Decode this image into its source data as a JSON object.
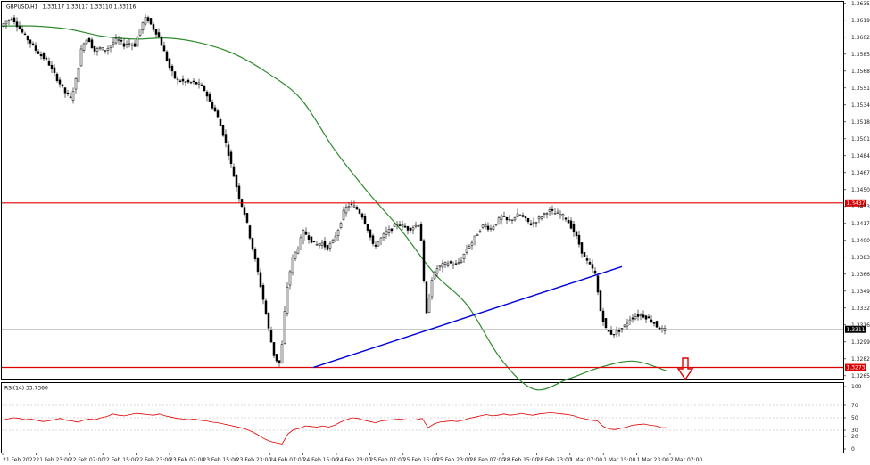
{
  "chart_data": [
    {
      "type": "candlestick",
      "title": "GBPUSD,H1",
      "ohlc_label": "1.33117 1.33117 1.33110 1.33116",
      "ylim": [
        1.32655,
        1.36355
      ],
      "y_ticks": [
        "1.36355",
        "1.36190",
        "1.36020",
        "1.35855",
        "1.35685",
        "1.35515",
        "1.35345",
        "1.35180",
        "1.35010",
        "1.34840",
        "1.34675",
        "1.34500",
        "1.34335",
        "1.34170",
        "1.34000",
        "1.33830",
        "1.33665",
        "1.33495",
        "1.33325",
        "1.33160",
        "1.32990",
        "1.32820",
        "1.32655"
      ],
      "x_ticks": [
        "21 Feb 2022",
        "21 Feb 23:00",
        "22 Feb 07:00",
        "22 Feb 15:00",
        "22 Feb 23:00",
        "23 Feb 07:00",
        "23 Feb 15:00",
        "23 Feb 23:00",
        "24 Feb 07:00",
        "24 Feb 15:00",
        "24 Feb 23:00",
        "25 Feb 07:00",
        "25 Feb 15:00",
        "25 Feb 23:00",
        "28 Feb 07:00",
        "28 Feb 15:00",
        "28 Feb 23:00",
        "1 Mar 07:00",
        "1 Mar 15:00",
        "1 Mar 23:00",
        "2 Mar 07:00"
      ],
      "price_path": [
        1.3613,
        1.3618,
        1.3621,
        1.3612,
        1.3604,
        1.3597,
        1.3589,
        1.3583,
        1.3578,
        1.3567,
        1.3557,
        1.3547,
        1.3541,
        1.3562,
        1.3596,
        1.3601,
        1.3588,
        1.3591,
        1.3589,
        1.3595,
        1.36,
        1.3594,
        1.3596,
        1.3594,
        1.3612,
        1.3622,
        1.3612,
        1.3604,
        1.3588,
        1.3571,
        1.356,
        1.3558,
        1.3557,
        1.3557,
        1.3555,
        1.3549,
        1.3536,
        1.3526,
        1.3509,
        1.3488,
        1.3464,
        1.3441,
        1.3424,
        1.3397,
        1.3372,
        1.3343,
        1.3311,
        1.3283,
        1.3277,
        1.3348,
        1.3381,
        1.3393,
        1.3409,
        1.3402,
        1.3395,
        1.3398,
        1.3392,
        1.3399,
        1.3412,
        1.3431,
        1.3436,
        1.3432,
        1.3425,
        1.3411,
        1.3393,
        1.34,
        1.3407,
        1.3411,
        1.3417,
        1.3414,
        1.3411,
        1.3414,
        1.3417,
        1.3323,
        1.3362,
        1.3373,
        1.3376,
        1.3378,
        1.3375,
        1.338,
        1.3392,
        1.3399,
        1.3409,
        1.3416,
        1.3411,
        1.3417,
        1.3424,
        1.3419,
        1.3422,
        1.3426,
        1.3421,
        1.3416,
        1.342,
        1.3425,
        1.343,
        1.3427,
        1.3426,
        1.3422,
        1.3413,
        1.3401,
        1.3385,
        1.3376,
        1.3368,
        1.3329,
        1.331,
        1.3307,
        1.331,
        1.3314,
        1.3322,
        1.3325,
        1.3326,
        1.3323,
        1.3319,
        1.3312,
        1.3311
      ],
      "moving_average": {
        "color": "#2e8b2e",
        "x": [
          0,
          0.04,
          0.08,
          0.12,
          0.16,
          0.2,
          0.24,
          0.28,
          0.32,
          0.36,
          0.4,
          0.44,
          0.48,
          0.52,
          0.56,
          0.6,
          0.64,
          0.68,
          0.72,
          0.76,
          0.8
        ],
        "y": [
          1.3613,
          1.3613,
          1.361,
          1.3603,
          1.36,
          1.3601,
          1.3596,
          1.3585,
          1.3566,
          1.354,
          1.349,
          1.3448,
          1.341,
          1.3367,
          1.3335,
          1.3282,
          1.3252,
          1.3262,
          1.3274,
          1.328,
          1.327
        ]
      },
      "hlines": [
        {
          "value": 1.34372,
          "label": "1.34372",
          "color": "#e00000"
        },
        {
          "value": 1.32737,
          "label": "1.32737",
          "color": "#e00000"
        },
        {
          "value": 1.33116,
          "label": "1.33116",
          "color": "#aaaaaa"
        }
      ],
      "trendline": {
        "color": "#0000dd",
        "from": [
          1.32737
        ],
        "to": [
          1.33739
        ]
      },
      "arrow": {
        "color": "#e00000",
        "direction": "down"
      }
    },
    {
      "type": "line",
      "title": "RSI(14) 33.7360",
      "ylim": [
        0,
        100
      ],
      "y_ticks": [
        "100",
        "70",
        "50",
        "30",
        "20",
        "0"
      ],
      "levels": [
        70,
        50,
        30
      ],
      "color": "#e00000",
      "values": [
        46,
        48,
        50,
        49,
        47,
        48,
        46,
        44,
        45,
        47,
        49,
        46,
        45,
        43,
        46,
        48,
        47,
        50,
        52,
        56,
        54,
        53,
        55,
        57,
        56,
        55,
        54,
        56,
        53,
        51,
        49,
        48,
        47,
        48,
        46,
        45,
        43,
        42,
        40,
        38,
        36,
        34,
        31,
        27,
        22,
        16,
        12,
        10,
        8,
        24,
        31,
        33,
        37,
        36,
        35,
        37,
        35,
        38,
        43,
        47,
        50,
        49,
        46,
        44,
        42,
        45,
        46,
        47,
        48,
        47,
        46,
        47,
        49,
        34,
        40,
        43,
        44,
        45,
        44,
        46,
        49,
        51,
        53,
        55,
        53,
        54,
        56,
        54,
        55,
        57,
        55,
        54,
        56,
        57,
        58,
        57,
        56,
        55,
        53,
        50,
        48,
        46,
        45,
        36,
        32,
        31,
        33,
        35,
        38,
        39,
        40,
        38,
        37,
        34,
        34
      ]
    }
  ]
}
